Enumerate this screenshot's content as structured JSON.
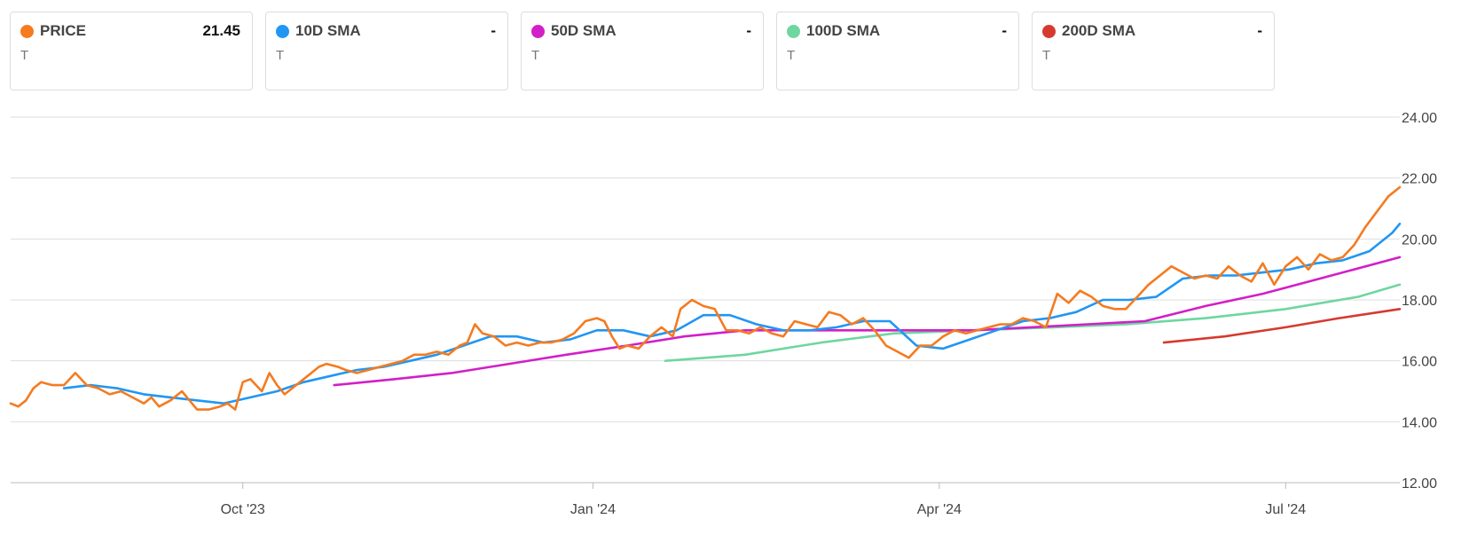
{
  "legend": [
    {
      "label": "PRICE",
      "value": "21.45",
      "ticker": "T",
      "color": "#f47b20"
    },
    {
      "label": "10D SMA",
      "value": "-",
      "ticker": "T",
      "color": "#2196f3"
    },
    {
      "label": "50D SMA",
      "value": "-",
      "ticker": "T",
      "color": "#d21fc7"
    },
    {
      "label": "100D SMA",
      "value": "-",
      "ticker": "T",
      "color": "#6fd6a0"
    },
    {
      "label": "200D SMA",
      "value": "-",
      "ticker": "T",
      "color": "#d63a2f"
    }
  ],
  "chart_data": {
    "type": "line",
    "title": "",
    "xlabel": "",
    "ylabel": "",
    "ylim": [
      12,
      24
    ],
    "yticks": [
      "12.00",
      "14.00",
      "16.00",
      "18.00",
      "20.00",
      "22.00",
      "24.00"
    ],
    "xlim": [
      "2023-08-01",
      "2024-07-31"
    ],
    "xticks": [
      {
        "date": "2023-10-01",
        "label": "Oct '23"
      },
      {
        "date": "2024-01-01",
        "label": "Jan '24"
      },
      {
        "date": "2024-04-01",
        "label": "Apr '24"
      },
      {
        "date": "2024-07-01",
        "label": "Jul '24"
      }
    ],
    "grid": true,
    "series": [
      {
        "name": "PRICE",
        "color": "#f47b20",
        "points": [
          [
            "2023-08-01",
            14.6
          ],
          [
            "2023-08-03",
            14.5
          ],
          [
            "2023-08-05",
            14.7
          ],
          [
            "2023-08-07",
            15.1
          ],
          [
            "2023-08-09",
            15.3
          ],
          [
            "2023-08-12",
            15.2
          ],
          [
            "2023-08-15",
            15.2
          ],
          [
            "2023-08-18",
            15.6
          ],
          [
            "2023-08-21",
            15.2
          ],
          [
            "2023-08-24",
            15.1
          ],
          [
            "2023-08-27",
            14.9
          ],
          [
            "2023-08-30",
            15.0
          ],
          [
            "2023-09-02",
            14.8
          ],
          [
            "2023-09-05",
            14.6
          ],
          [
            "2023-09-07",
            14.8
          ],
          [
            "2023-09-09",
            14.5
          ],
          [
            "2023-09-12",
            14.7
          ],
          [
            "2023-09-15",
            15.0
          ],
          [
            "2023-09-17",
            14.7
          ],
          [
            "2023-09-19",
            14.4
          ],
          [
            "2023-09-22",
            14.4
          ],
          [
            "2023-09-25",
            14.5
          ],
          [
            "2023-09-27",
            14.6
          ],
          [
            "2023-09-29",
            14.4
          ],
          [
            "2023-10-01",
            15.3
          ],
          [
            "2023-10-03",
            15.4
          ],
          [
            "2023-10-06",
            15.0
          ],
          [
            "2023-10-08",
            15.6
          ],
          [
            "2023-10-10",
            15.2
          ],
          [
            "2023-10-12",
            14.9
          ],
          [
            "2023-10-15",
            15.2
          ],
          [
            "2023-10-18",
            15.5
          ],
          [
            "2023-10-21",
            15.8
          ],
          [
            "2023-10-23",
            15.9
          ],
          [
            "2023-10-26",
            15.8
          ],
          [
            "2023-10-28",
            15.7
          ],
          [
            "2023-10-31",
            15.6
          ],
          [
            "2023-11-03",
            15.7
          ],
          [
            "2023-11-06",
            15.8
          ],
          [
            "2023-11-09",
            15.9
          ],
          [
            "2023-11-12",
            16.0
          ],
          [
            "2023-11-15",
            16.2
          ],
          [
            "2023-11-18",
            16.2
          ],
          [
            "2023-11-21",
            16.3
          ],
          [
            "2023-11-24",
            16.2
          ],
          [
            "2023-11-27",
            16.5
          ],
          [
            "2023-11-29",
            16.6
          ],
          [
            "2023-12-01",
            17.2
          ],
          [
            "2023-12-03",
            16.9
          ],
          [
            "2023-12-06",
            16.8
          ],
          [
            "2023-12-09",
            16.5
          ],
          [
            "2023-12-12",
            16.6
          ],
          [
            "2023-12-15",
            16.5
          ],
          [
            "2023-12-18",
            16.6
          ],
          [
            "2023-12-21",
            16.6
          ],
          [
            "2023-12-24",
            16.7
          ],
          [
            "2023-12-27",
            16.9
          ],
          [
            "2023-12-30",
            17.3
          ],
          [
            "2024-01-02",
            17.4
          ],
          [
            "2024-01-04",
            17.3
          ],
          [
            "2024-01-06",
            16.8
          ],
          [
            "2024-01-08",
            16.4
          ],
          [
            "2024-01-10",
            16.5
          ],
          [
            "2024-01-13",
            16.4
          ],
          [
            "2024-01-16",
            16.8
          ],
          [
            "2024-01-19",
            17.1
          ],
          [
            "2024-01-22",
            16.8
          ],
          [
            "2024-01-24",
            17.7
          ],
          [
            "2024-01-27",
            18.0
          ],
          [
            "2024-01-30",
            17.8
          ],
          [
            "2024-02-02",
            17.7
          ],
          [
            "2024-02-05",
            17.0
          ],
          [
            "2024-02-08",
            17.0
          ],
          [
            "2024-02-11",
            16.9
          ],
          [
            "2024-02-14",
            17.1
          ],
          [
            "2024-02-17",
            16.9
          ],
          [
            "2024-02-20",
            16.8
          ],
          [
            "2024-02-23",
            17.3
          ],
          [
            "2024-02-26",
            17.2
          ],
          [
            "2024-02-29",
            17.1
          ],
          [
            "2024-03-03",
            17.6
          ],
          [
            "2024-03-06",
            17.5
          ],
          [
            "2024-03-09",
            17.2
          ],
          [
            "2024-03-12",
            17.4
          ],
          [
            "2024-03-15",
            17.0
          ],
          [
            "2024-03-18",
            16.5
          ],
          [
            "2024-03-21",
            16.3
          ],
          [
            "2024-03-24",
            16.1
          ],
          [
            "2024-03-27",
            16.5
          ],
          [
            "2024-03-30",
            16.5
          ],
          [
            "2024-04-02",
            16.8
          ],
          [
            "2024-04-05",
            17.0
          ],
          [
            "2024-04-08",
            16.9
          ],
          [
            "2024-04-11",
            17.0
          ],
          [
            "2024-04-14",
            17.1
          ],
          [
            "2024-04-17",
            17.2
          ],
          [
            "2024-04-20",
            17.2
          ],
          [
            "2024-04-23",
            17.4
          ],
          [
            "2024-04-26",
            17.3
          ],
          [
            "2024-04-29",
            17.1
          ],
          [
            "2024-05-02",
            18.2
          ],
          [
            "2024-05-05",
            17.9
          ],
          [
            "2024-05-08",
            18.3
          ],
          [
            "2024-05-11",
            18.1
          ],
          [
            "2024-05-14",
            17.8
          ],
          [
            "2024-05-17",
            17.7
          ],
          [
            "2024-05-20",
            17.7
          ],
          [
            "2024-05-23",
            18.1
          ],
          [
            "2024-05-26",
            18.5
          ],
          [
            "2024-05-29",
            18.8
          ],
          [
            "2024-06-01",
            19.1
          ],
          [
            "2024-06-04",
            18.9
          ],
          [
            "2024-06-07",
            18.7
          ],
          [
            "2024-06-10",
            18.8
          ],
          [
            "2024-06-13",
            18.7
          ],
          [
            "2024-06-16",
            19.1
          ],
          [
            "2024-06-19",
            18.8
          ],
          [
            "2024-06-22",
            18.6
          ],
          [
            "2024-06-25",
            19.2
          ],
          [
            "2024-06-28",
            18.5
          ],
          [
            "2024-07-01",
            19.1
          ],
          [
            "2024-07-04",
            19.4
          ],
          [
            "2024-07-07",
            19.0
          ],
          [
            "2024-07-10",
            19.5
          ],
          [
            "2024-07-13",
            19.3
          ],
          [
            "2024-07-16",
            19.4
          ],
          [
            "2024-07-19",
            19.8
          ],
          [
            "2024-07-22",
            20.4
          ],
          [
            "2024-07-25",
            20.9
          ],
          [
            "2024-07-28",
            21.4
          ],
          [
            "2024-07-31",
            21.7
          ]
        ]
      },
      {
        "name": "10D SMA",
        "color": "#2196f3",
        "points": [
          [
            "2023-08-15",
            15.1
          ],
          [
            "2023-08-22",
            15.2
          ],
          [
            "2023-08-29",
            15.1
          ],
          [
            "2023-09-05",
            14.9
          ],
          [
            "2023-09-12",
            14.8
          ],
          [
            "2023-09-19",
            14.7
          ],
          [
            "2023-09-26",
            14.6
          ],
          [
            "2023-10-03",
            14.8
          ],
          [
            "2023-10-10",
            15.0
          ],
          [
            "2023-10-17",
            15.3
          ],
          [
            "2023-10-24",
            15.5
          ],
          [
            "2023-10-31",
            15.7
          ],
          [
            "2023-11-07",
            15.8
          ],
          [
            "2023-11-14",
            16.0
          ],
          [
            "2023-11-21",
            16.2
          ],
          [
            "2023-11-28",
            16.5
          ],
          [
            "2023-12-05",
            16.8
          ],
          [
            "2023-12-12",
            16.8
          ],
          [
            "2023-12-19",
            16.6
          ],
          [
            "2023-12-26",
            16.7
          ],
          [
            "2024-01-02",
            17.0
          ],
          [
            "2024-01-09",
            17.0
          ],
          [
            "2024-01-16",
            16.8
          ],
          [
            "2024-01-23",
            17.0
          ],
          [
            "2024-01-30",
            17.5
          ],
          [
            "2024-02-06",
            17.5
          ],
          [
            "2024-02-13",
            17.2
          ],
          [
            "2024-02-20",
            17.0
          ],
          [
            "2024-02-27",
            17.0
          ],
          [
            "2024-03-05",
            17.1
          ],
          [
            "2024-03-12",
            17.3
          ],
          [
            "2024-03-19",
            17.3
          ],
          [
            "2024-03-26",
            16.5
          ],
          [
            "2024-04-02",
            16.4
          ],
          [
            "2024-04-09",
            16.7
          ],
          [
            "2024-04-16",
            17.0
          ],
          [
            "2024-04-23",
            17.3
          ],
          [
            "2024-04-30",
            17.4
          ],
          [
            "2024-05-07",
            17.6
          ],
          [
            "2024-05-14",
            18.0
          ],
          [
            "2024-05-21",
            18.0
          ],
          [
            "2024-05-28",
            18.1
          ],
          [
            "2024-06-04",
            18.7
          ],
          [
            "2024-06-11",
            18.8
          ],
          [
            "2024-06-18",
            18.8
          ],
          [
            "2024-06-25",
            18.9
          ],
          [
            "2024-07-02",
            19.0
          ],
          [
            "2024-07-09",
            19.2
          ],
          [
            "2024-07-16",
            19.3
          ],
          [
            "2024-07-23",
            19.6
          ],
          [
            "2024-07-29",
            20.2
          ],
          [
            "2024-07-31",
            20.5
          ]
        ]
      },
      {
        "name": "50D SMA",
        "color": "#d21fc7",
        "points": [
          [
            "2023-10-25",
            15.2
          ],
          [
            "2023-11-10",
            15.4
          ],
          [
            "2023-11-25",
            15.6
          ],
          [
            "2023-12-10",
            15.9
          ],
          [
            "2023-12-25",
            16.2
          ],
          [
            "2024-01-10",
            16.5
          ],
          [
            "2024-01-25",
            16.8
          ],
          [
            "2024-02-10",
            17.0
          ],
          [
            "2024-02-25",
            17.0
          ],
          [
            "2024-03-10",
            17.0
          ],
          [
            "2024-03-25",
            17.0
          ],
          [
            "2024-04-10",
            17.0
          ],
          [
            "2024-04-25",
            17.1
          ],
          [
            "2024-05-10",
            17.2
          ],
          [
            "2024-05-25",
            17.3
          ],
          [
            "2024-06-10",
            17.8
          ],
          [
            "2024-06-25",
            18.2
          ],
          [
            "2024-07-10",
            18.7
          ],
          [
            "2024-07-31",
            19.4
          ]
        ]
      },
      {
        "name": "100D SMA",
        "color": "#6fd6a0",
        "points": [
          [
            "2024-01-20",
            16.0
          ],
          [
            "2024-02-10",
            16.2
          ],
          [
            "2024-03-01",
            16.6
          ],
          [
            "2024-03-20",
            16.9
          ],
          [
            "2024-04-10",
            17.0
          ],
          [
            "2024-05-01",
            17.1
          ],
          [
            "2024-05-20",
            17.2
          ],
          [
            "2024-06-10",
            17.4
          ],
          [
            "2024-07-01",
            17.7
          ],
          [
            "2024-07-20",
            18.1
          ],
          [
            "2024-07-31",
            18.5
          ]
        ]
      },
      {
        "name": "200D SMA",
        "color": "#d63a2f",
        "points": [
          [
            "2024-05-30",
            16.6
          ],
          [
            "2024-06-15",
            16.8
          ],
          [
            "2024-07-01",
            17.1
          ],
          [
            "2024-07-15",
            17.4
          ],
          [
            "2024-07-31",
            17.7
          ]
        ]
      }
    ]
  }
}
